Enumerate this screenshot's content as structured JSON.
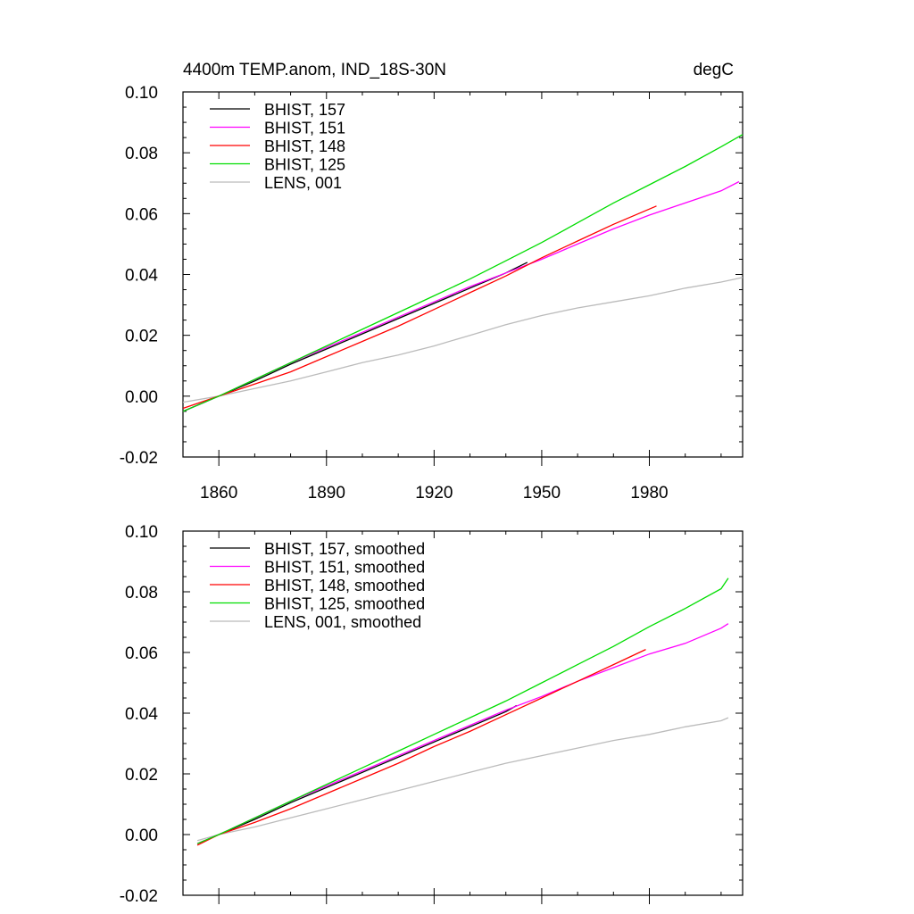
{
  "chart_data": [
    {
      "type": "line",
      "title_left": "4400m TEMP.anom, IND_18S-30N",
      "title_right": "degC",
      "xlim": [
        1850,
        2006
      ],
      "ylim": [
        -0.02,
        0.1
      ],
      "yticks": [
        "-0.02",
        "0.00",
        "0.02",
        "0.04",
        "0.06",
        "0.08",
        "0.10"
      ],
      "xticks": [
        "1860",
        "1890",
        "1920",
        "1950",
        "1980"
      ],
      "legend_position": "top-left",
      "series": [
        {
          "name": "BHIST, 157",
          "color": "#000000",
          "x": [
            1850,
            1860,
            1870,
            1880,
            1890,
            1900,
            1910,
            1920,
            1930,
            1940,
            1946
          ],
          "y": [
            -0.005,
            0.0,
            0.005,
            0.0105,
            0.0155,
            0.0205,
            0.0255,
            0.0305,
            0.0355,
            0.0405,
            0.044
          ]
        },
        {
          "name": "BHIST, 151",
          "color": "#ff00ff",
          "x": [
            1850,
            1860,
            1870,
            1880,
            1890,
            1900,
            1910,
            1920,
            1930,
            1940,
            1950,
            1960,
            1970,
            1980,
            1990,
            2000,
            2005
          ],
          "y": [
            -0.005,
            0.0,
            0.0055,
            0.011,
            0.016,
            0.021,
            0.026,
            0.031,
            0.036,
            0.0405,
            0.045,
            0.05,
            0.055,
            0.0595,
            0.0635,
            0.0675,
            0.0705
          ]
        },
        {
          "name": "BHIST, 148",
          "color": "#ff0000",
          "x": [
            1850,
            1860,
            1870,
            1880,
            1890,
            1900,
            1910,
            1920,
            1930,
            1940,
            1950,
            1960,
            1970,
            1982
          ],
          "y": [
            -0.004,
            0.0,
            0.004,
            0.008,
            0.013,
            0.018,
            0.023,
            0.0285,
            0.034,
            0.0395,
            0.0455,
            0.051,
            0.0565,
            0.0625
          ]
        },
        {
          "name": "BHIST, 125",
          "color": "#00dd00",
          "x": [
            1850,
            1860,
            1870,
            1880,
            1890,
            1900,
            1910,
            1920,
            1930,
            1940,
            1950,
            1960,
            1970,
            1980,
            1990,
            2000,
            2006
          ],
          "y": [
            -0.005,
            0.0,
            0.0055,
            0.011,
            0.0165,
            0.022,
            0.0275,
            0.033,
            0.0385,
            0.0445,
            0.0505,
            0.057,
            0.0635,
            0.0695,
            0.0755,
            0.082,
            0.086
          ]
        },
        {
          "name": "LENS, 001",
          "color": "#bbbbbb",
          "x": [
            1850,
            1860,
            1870,
            1880,
            1890,
            1900,
            1910,
            1920,
            1930,
            1940,
            1950,
            1960,
            1970,
            1980,
            1990,
            2000,
            2006
          ],
          "y": [
            -0.002,
            0.0,
            0.0025,
            0.005,
            0.008,
            0.011,
            0.0135,
            0.0165,
            0.02,
            0.0235,
            0.0265,
            0.029,
            0.031,
            0.033,
            0.0355,
            0.0375,
            0.039
          ]
        }
      ]
    },
    {
      "type": "line",
      "xlim": [
        1850,
        2006
      ],
      "ylim": [
        -0.02,
        0.1
      ],
      "yticks": [
        "-0.02",
        "0.00",
        "0.02",
        "0.04",
        "0.06",
        "0.08",
        "0.10"
      ],
      "xticks": [],
      "legend_position": "top-left",
      "series": [
        {
          "name": "BHIST, 157, smoothed",
          "color": "#000000",
          "x": [
            1854,
            1860,
            1870,
            1880,
            1890,
            1900,
            1910,
            1920,
            1930,
            1940,
            1943
          ],
          "y": [
            -0.003,
            0.0,
            0.005,
            0.0105,
            0.0155,
            0.0205,
            0.0255,
            0.0305,
            0.0355,
            0.0405,
            0.0425
          ]
        },
        {
          "name": "BHIST, 151, smoothed",
          "color": "#ff00ff",
          "x": [
            1854,
            1860,
            1870,
            1880,
            1890,
            1900,
            1910,
            1920,
            1930,
            1940,
            1950,
            1960,
            1970,
            1980,
            1990,
            2000,
            2002
          ],
          "y": [
            -0.003,
            0.0,
            0.0055,
            0.011,
            0.016,
            0.021,
            0.026,
            0.031,
            0.036,
            0.041,
            0.0455,
            0.0505,
            0.055,
            0.0595,
            0.063,
            0.068,
            0.0695
          ]
        },
        {
          "name": "BHIST, 148, smoothed",
          "color": "#ff0000",
          "x": [
            1854,
            1860,
            1870,
            1880,
            1890,
            1900,
            1910,
            1920,
            1930,
            1940,
            1950,
            1960,
            1970,
            1979
          ],
          "y": [
            -0.0035,
            0.0,
            0.004,
            0.0085,
            0.0135,
            0.0185,
            0.0235,
            0.029,
            0.034,
            0.0395,
            0.045,
            0.0505,
            0.056,
            0.061
          ]
        },
        {
          "name": "BHIST, 125, smoothed",
          "color": "#00dd00",
          "x": [
            1854,
            1860,
            1870,
            1880,
            1890,
            1900,
            1910,
            1920,
            1930,
            1940,
            1950,
            1960,
            1970,
            1980,
            1990,
            2000,
            2002
          ],
          "y": [
            -0.003,
            0.0,
            0.0055,
            0.011,
            0.0165,
            0.022,
            0.0275,
            0.033,
            0.0385,
            0.044,
            0.05,
            0.056,
            0.062,
            0.0685,
            0.0745,
            0.081,
            0.0845
          ]
        },
        {
          "name": "LENS, 001, smoothed",
          "color": "#bbbbbb",
          "x": [
            1854,
            1860,
            1870,
            1880,
            1890,
            1900,
            1910,
            1920,
            1930,
            1940,
            1950,
            1960,
            1970,
            1980,
            1990,
            2000,
            2002
          ],
          "y": [
            -0.002,
            0.0,
            0.0025,
            0.0055,
            0.0085,
            0.0115,
            0.0145,
            0.0175,
            0.0205,
            0.0235,
            0.026,
            0.0285,
            0.031,
            0.033,
            0.0355,
            0.0375,
            0.0385
          ]
        }
      ]
    }
  ]
}
